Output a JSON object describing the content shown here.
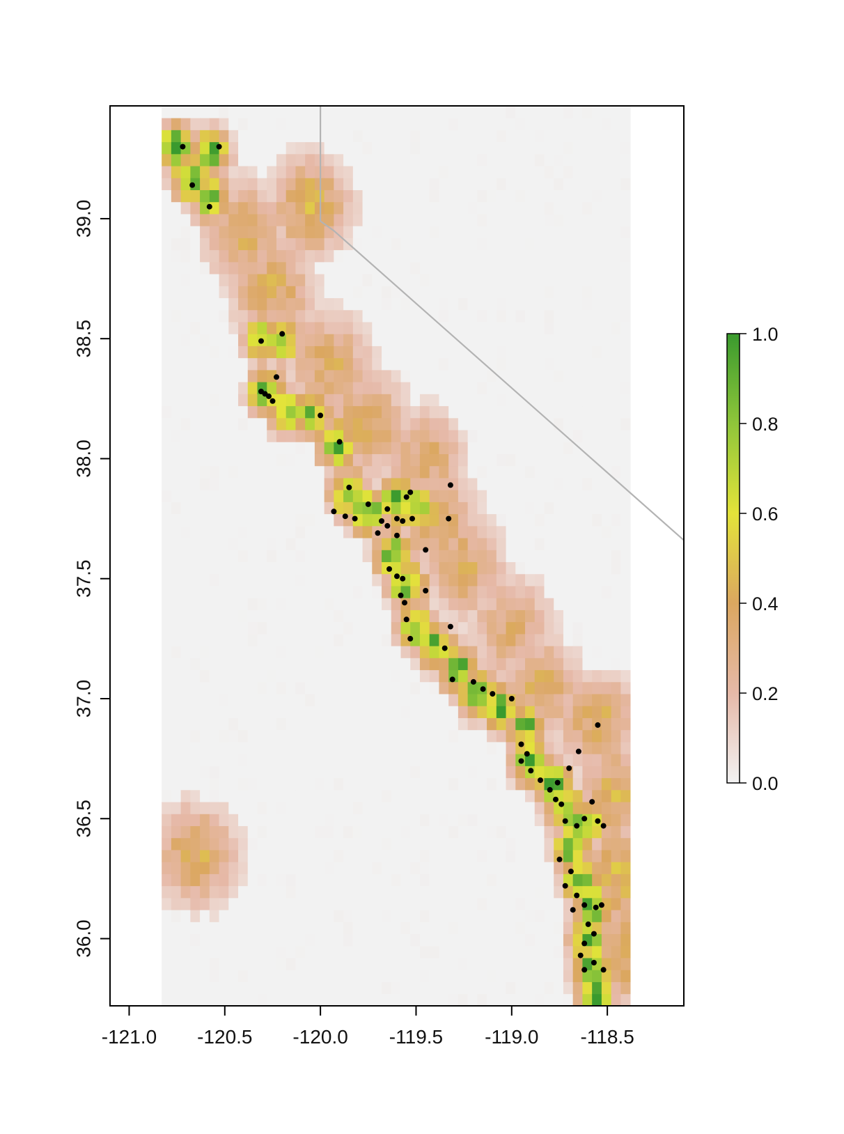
{
  "chart_data": {
    "type": "heatmap",
    "title": "",
    "xlabel": "",
    "ylabel": "",
    "xlim": [
      -121.1,
      -118.1
    ],
    "ylim": [
      35.72,
      39.47
    ],
    "x_ticks": [
      -121.0,
      -120.5,
      -120.0,
      -119.5,
      -119.0,
      -118.5
    ],
    "x_tick_labels": [
      "-121.0",
      "-120.5",
      "-120.0",
      "-119.5",
      "-119.0",
      "-118.5"
    ],
    "y_ticks": [
      36.0,
      36.5,
      37.0,
      37.5,
      38.0,
      38.5,
      39.0
    ],
    "y_tick_labels": [
      "36.0",
      "36.5",
      "37.0",
      "37.5",
      "38.0",
      "38.5",
      "39.0"
    ],
    "value_range": [
      0,
      1
    ],
    "raster_extent": {
      "lon": [
        -120.83,
        -118.38
      ],
      "lat": [
        35.72,
        39.45
      ]
    },
    "legend": {
      "placement": "right",
      "ticks": [
        0.0,
        0.2,
        0.4,
        0.6,
        0.8,
        1.0
      ],
      "tick_labels": [
        "0.0",
        "0.2",
        "0.4",
        "0.6",
        "0.8",
        "1.0"
      ],
      "colors": [
        "#f2f2f2",
        "#e6b9a8",
        "#dba760",
        "#e3e33a",
        "#8fc63a",
        "#3a9a2e"
      ]
    },
    "high_suitability_band": [
      [
        -120.75,
        39.3,
        0.95
      ],
      [
        -120.68,
        39.17,
        0.92
      ],
      [
        -120.57,
        39.28,
        0.9
      ],
      [
        -120.57,
        39.08,
        0.85
      ],
      [
        -120.3,
        38.5,
        0.8
      ],
      [
        -120.2,
        38.5,
        0.82
      ],
      [
        -120.28,
        38.28,
        0.97
      ],
      [
        -120.18,
        38.2,
        0.8
      ],
      [
        -120.05,
        38.18,
        0.85
      ],
      [
        -119.92,
        38.06,
        0.9
      ],
      [
        -119.85,
        37.85,
        0.98
      ],
      [
        -119.75,
        37.78,
        0.95
      ],
      [
        -119.6,
        37.82,
        0.92
      ],
      [
        -119.5,
        37.8,
        0.9
      ],
      [
        -119.62,
        37.6,
        0.93
      ],
      [
        -119.55,
        37.48,
        0.95
      ],
      [
        -119.5,
        37.3,
        0.97
      ],
      [
        -119.4,
        37.22,
        0.9
      ],
      [
        -119.28,
        37.12,
        0.95
      ],
      [
        -119.18,
        37.02,
        0.93
      ],
      [
        -119.05,
        36.96,
        0.92
      ],
      [
        -118.92,
        36.88,
        0.88
      ],
      [
        -118.9,
        36.74,
        0.98
      ],
      [
        -118.78,
        36.64,
        0.97
      ],
      [
        -118.72,
        36.54,
        0.95
      ],
      [
        -118.62,
        36.48,
        0.9
      ],
      [
        -118.68,
        36.38,
        0.93
      ],
      [
        -118.64,
        36.24,
        0.95
      ],
      [
        -118.58,
        36.14,
        0.96
      ],
      [
        -118.6,
        36.0,
        0.95
      ],
      [
        -118.58,
        35.86,
        0.97
      ],
      [
        -118.56,
        35.76,
        0.95
      ]
    ],
    "moderate_band": [
      [
        -120.4,
        38.95,
        0.4
      ],
      [
        -120.05,
        39.05,
        0.45
      ],
      [
        -120.25,
        38.7,
        0.4
      ],
      [
        -119.95,
        38.4,
        0.38
      ],
      [
        -119.75,
        38.15,
        0.4
      ],
      [
        -119.45,
        38.0,
        0.35
      ],
      [
        -119.4,
        37.75,
        0.4
      ],
      [
        -119.25,
        37.55,
        0.38
      ],
      [
        -119.0,
        37.3,
        0.35
      ],
      [
        -118.85,
        37.05,
        0.38
      ],
      [
        -118.55,
        36.9,
        0.4
      ],
      [
        -118.45,
        36.6,
        0.42
      ],
      [
        -118.45,
        36.25,
        0.45
      ],
      [
        -118.4,
        35.95,
        0.45
      ],
      [
        -120.65,
        36.35,
        0.42
      ]
    ],
    "occurrences": [
      [
        -120.72,
        39.3
      ],
      [
        -120.67,
        39.14
      ],
      [
        -120.53,
        39.3
      ],
      [
        -120.58,
        39.05
      ],
      [
        -120.31,
        38.49
      ],
      [
        -120.2,
        38.52
      ],
      [
        -120.23,
        38.34
      ],
      [
        -120.31,
        38.28
      ],
      [
        -120.29,
        38.27
      ],
      [
        -120.27,
        38.26
      ],
      [
        -120.25,
        38.24
      ],
      [
        -120.0,
        38.18
      ],
      [
        -119.9,
        38.07
      ],
      [
        -119.85,
        37.88
      ],
      [
        -119.93,
        37.78
      ],
      [
        -119.87,
        37.76
      ],
      [
        -119.82,
        37.75
      ],
      [
        -119.75,
        37.81
      ],
      [
        -119.68,
        37.74
      ],
      [
        -119.65,
        37.72
      ],
      [
        -119.6,
        37.75
      ],
      [
        -119.55,
        37.84
      ],
      [
        -119.53,
        37.86
      ],
      [
        -119.52,
        37.75
      ],
      [
        -119.57,
        37.74
      ],
      [
        -119.65,
        37.79
      ],
      [
        -119.32,
        37.89
      ],
      [
        -119.33,
        37.75
      ],
      [
        -119.7,
        37.69
      ],
      [
        -119.6,
        37.68
      ],
      [
        -119.45,
        37.62
      ],
      [
        -119.64,
        37.54
      ],
      [
        -119.6,
        37.51
      ],
      [
        -119.57,
        37.5
      ],
      [
        -119.58,
        37.43
      ],
      [
        -119.56,
        37.4
      ],
      [
        -119.45,
        37.45
      ],
      [
        -119.55,
        37.33
      ],
      [
        -119.53,
        37.25
      ],
      [
        -119.32,
        37.3
      ],
      [
        -119.35,
        37.21
      ],
      [
        -119.31,
        37.08
      ],
      [
        -119.2,
        37.07
      ],
      [
        -119.15,
        37.04
      ],
      [
        -119.1,
        37.02
      ],
      [
        -119.0,
        37.0
      ],
      [
        -118.95,
        36.81
      ],
      [
        -118.92,
        36.77
      ],
      [
        -118.95,
        36.74
      ],
      [
        -118.9,
        36.7
      ],
      [
        -118.85,
        36.66
      ],
      [
        -118.8,
        36.62
      ],
      [
        -118.77,
        36.58
      ],
      [
        -118.74,
        36.56
      ],
      [
        -118.76,
        36.65
      ],
      [
        -118.7,
        36.71
      ],
      [
        -118.65,
        36.78
      ],
      [
        -118.55,
        36.89
      ],
      [
        -118.72,
        36.49
      ],
      [
        -118.66,
        36.47
      ],
      [
        -118.62,
        36.5
      ],
      [
        -118.55,
        36.49
      ],
      [
        -118.52,
        36.47
      ],
      [
        -118.58,
        36.57
      ],
      [
        -118.75,
        36.33
      ],
      [
        -118.69,
        36.28
      ],
      [
        -118.72,
        36.22
      ],
      [
        -118.66,
        36.18
      ],
      [
        -118.68,
        36.12
      ],
      [
        -118.62,
        36.14
      ],
      [
        -118.56,
        36.13
      ],
      [
        -118.53,
        36.14
      ],
      [
        -118.6,
        36.06
      ],
      [
        -118.57,
        36.02
      ],
      [
        -118.62,
        35.98
      ],
      [
        -118.64,
        35.93
      ],
      [
        -118.57,
        35.9
      ],
      [
        -118.62,
        35.87
      ],
      [
        -118.52,
        35.87
      ]
    ],
    "overlays": {
      "border_line": [
        [
          -120.0,
          39.47
        ],
        [
          -120.0,
          38.99
        ],
        [
          -119.93,
          38.95
        ],
        [
          -118.1,
          37.66
        ]
      ],
      "presence_mask": true
    }
  }
}
